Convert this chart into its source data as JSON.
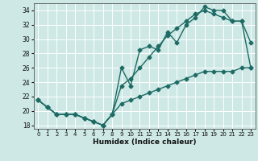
{
  "xlabel": "Humidex (Indice chaleur)",
  "xlim": [
    -0.5,
    23.5
  ],
  "ylim": [
    17.5,
    35.0
  ],
  "xticks": [
    0,
    1,
    2,
    3,
    4,
    5,
    6,
    7,
    8,
    9,
    10,
    11,
    12,
    13,
    14,
    15,
    16,
    17,
    18,
    19,
    20,
    21,
    22,
    23
  ],
  "yticks": [
    18,
    20,
    22,
    24,
    26,
    28,
    30,
    32,
    34
  ],
  "bg_color": "#cde8e5",
  "grid_color": "#ffffff",
  "line_color": "#1e6b65",
  "curve1_x": [
    0,
    1,
    2,
    3,
    4,
    5,
    6,
    7,
    8,
    9,
    10,
    11,
    12,
    13,
    14,
    15,
    16,
    17,
    18,
    19,
    20,
    21,
    22,
    23
  ],
  "curve1_y": [
    21.5,
    20.5,
    19.5,
    19.5,
    19.5,
    19.0,
    18.5,
    18.0,
    19.5,
    26.0,
    23.5,
    28.5,
    29.0,
    28.5,
    31.0,
    29.5,
    32.0,
    33.0,
    34.5,
    34.0,
    34.0,
    32.5,
    32.5,
    29.5
  ],
  "curve2_x": [
    0,
    1,
    2,
    3,
    4,
    5,
    6,
    7,
    8,
    9,
    10,
    11,
    12,
    13,
    14,
    15,
    16,
    17,
    18,
    19,
    20,
    21,
    22,
    23
  ],
  "curve2_y": [
    21.5,
    20.5,
    19.5,
    19.5,
    19.5,
    19.0,
    18.5,
    18.0,
    19.5,
    23.5,
    24.5,
    26.0,
    27.5,
    29.0,
    30.5,
    31.5,
    32.5,
    33.5,
    34.0,
    33.5,
    33.0,
    32.5,
    32.5,
    26.0
  ],
  "curve3_x": [
    0,
    1,
    2,
    3,
    4,
    5,
    6,
    7,
    8,
    9,
    10,
    11,
    12,
    13,
    14,
    15,
    16,
    17,
    18,
    19,
    20,
    21,
    22,
    23
  ],
  "curve3_y": [
    21.5,
    20.5,
    19.5,
    19.5,
    19.5,
    19.0,
    18.5,
    18.0,
    19.5,
    21.0,
    21.5,
    22.0,
    22.5,
    23.0,
    23.5,
    24.0,
    24.5,
    25.0,
    25.5,
    25.5,
    25.5,
    25.5,
    26.0,
    26.0
  ],
  "marker": "D",
  "markersize": 2.5,
  "linewidth": 1.0
}
